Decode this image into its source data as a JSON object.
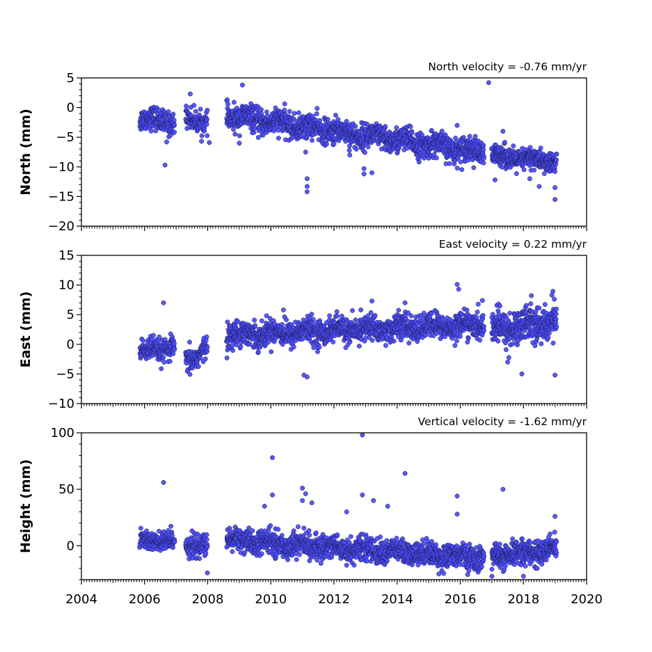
{
  "colors": {
    "marker_fill": "#4a4aff",
    "marker_edge": "#1a1a3a",
    "axes": "#000000",
    "background": "#ffffff"
  },
  "chart_data": [
    {
      "type": "scatter",
      "title": "North velocity = -0.76 mm/yr",
      "ylabel": "North (mm)",
      "xlabel": "",
      "xlim": [
        2004,
        2020
      ],
      "ylim": [
        -20,
        5
      ],
      "yticks": [
        5,
        0,
        -5,
        -10,
        -15,
        -20
      ],
      "ytick_labels": [
        "5",
        "0",
        "−5",
        "−10",
        "−15",
        "−20"
      ],
      "show_xtick_labels": false,
      "segments": [
        {
          "x": [
            2005.85,
            2006.95
          ],
          "mean": [
            -1.8,
            -2.5
          ],
          "noise": 1.2,
          "n": 160
        },
        {
          "x": [
            2007.3,
            2007.99
          ],
          "mean": [
            -1.8,
            -2.4
          ],
          "noise": 1.1,
          "n": 100
        },
        {
          "x": [
            2008.6,
            2016.75
          ],
          "mean": [
            -1.4,
            -7.6
          ],
          "noise": 1.3,
          "n": 1300
        },
        {
          "x": [
            2017.0,
            2019.05
          ],
          "mean": [
            -8.2,
            -9.2
          ],
          "noise": 1.1,
          "n": 360
        }
      ],
      "outliers": [
        {
          "x": 2006.65,
          "y": -9.7
        },
        {
          "x": 2006.7,
          "y": -5.8
        },
        {
          "x": 2007.45,
          "y": 2.3
        },
        {
          "x": 2008.05,
          "y": -5.9
        },
        {
          "x": 2008.62,
          "y": 1.3
        },
        {
          "x": 2009.1,
          "y": 3.8
        },
        {
          "x": 2009.0,
          "y": -6.0
        },
        {
          "x": 2011.15,
          "y": -12.0
        },
        {
          "x": 2011.15,
          "y": -13.3
        },
        {
          "x": 2011.15,
          "y": -14.2
        },
        {
          "x": 2011.1,
          "y": -7.5
        },
        {
          "x": 2012.5,
          "y": -8.0
        },
        {
          "x": 2012.95,
          "y": -10.3
        },
        {
          "x": 2012.95,
          "y": -11.2
        },
        {
          "x": 2013.2,
          "y": -11.0
        },
        {
          "x": 2016.9,
          "y": 4.2
        },
        {
          "x": 2015.9,
          "y": -3.0
        },
        {
          "x": 2017.35,
          "y": -4.0
        },
        {
          "x": 2017.1,
          "y": -12.2
        },
        {
          "x": 2018.5,
          "y": -13.3
        },
        {
          "x": 2019.0,
          "y": -15.5
        },
        {
          "x": 2019.0,
          "y": -13.5
        },
        {
          "x": 2018.2,
          "y": -12.0
        }
      ]
    },
    {
      "type": "scatter",
      "title": "East velocity = 0.22 mm/yr",
      "ylabel": "East (mm)",
      "xlabel": "",
      "xlim": [
        2004,
        2020
      ],
      "ylim": [
        -10,
        15
      ],
      "yticks": [
        15,
        10,
        5,
        0,
        -5,
        -10
      ],
      "ytick_labels": [
        "15",
        "10",
        "5",
        "0",
        "−5",
        "−10"
      ],
      "show_xtick_labels": false,
      "segments": [
        {
          "x": [
            2005.85,
            2006.95
          ],
          "mean": [
            -1.3,
            -0.6
          ],
          "noise": 1.2,
          "n": 160
        },
        {
          "x": [
            2007.3,
            2007.99
          ],
          "mean": [
            -3.2,
            -0.5
          ],
          "noise": 1.3,
          "n": 100
        },
        {
          "x": [
            2008.6,
            2016.75
          ],
          "mean": [
            1.6,
            3.3
          ],
          "noise": 1.3,
          "n": 1300
        },
        {
          "x": [
            2017.0,
            2019.05
          ],
          "mean": [
            2.4,
            4.0
          ],
          "noise": 1.8,
          "n": 360
        }
      ],
      "outliers": [
        {
          "x": 2006.6,
          "y": 7.0
        },
        {
          "x": 2010.4,
          "y": 5.8
        },
        {
          "x": 2011.05,
          "y": -5.2
        },
        {
          "x": 2011.15,
          "y": -5.5
        },
        {
          "x": 2012.85,
          "y": 5.8
        },
        {
          "x": 2013.2,
          "y": 7.3
        },
        {
          "x": 2014.25,
          "y": 7.0
        },
        {
          "x": 2015.9,
          "y": 10.1
        },
        {
          "x": 2015.95,
          "y": 9.3
        },
        {
          "x": 2016.7,
          "y": 7.4
        },
        {
          "x": 2017.5,
          "y": -3.0
        },
        {
          "x": 2017.95,
          "y": -5.0
        },
        {
          "x": 2018.25,
          "y": 8.2
        },
        {
          "x": 2019.0,
          "y": -5.2
        },
        {
          "x": 2018.9,
          "y": 8.3
        }
      ]
    },
    {
      "type": "scatter",
      "title": "Vertical velocity = -1.62 mm/yr",
      "ylabel": "Height (mm)",
      "xlabel": "",
      "xlim": [
        2004,
        2020
      ],
      "ylim": [
        -30,
        100
      ],
      "yticks": [
        100,
        50,
        0
      ],
      "ytick_labels": [
        "100",
        "50",
        "0"
      ],
      "show_xtick_labels": true,
      "xticks": [
        2004,
        2006,
        2008,
        2010,
        2012,
        2014,
        2016,
        2018,
        2020
      ],
      "xtick_labels": [
        "2004",
        "2006",
        "2008",
        "2010",
        "2012",
        "2014",
        "2016",
        "2018",
        "2020"
      ],
      "segments": [
        {
          "x": [
            2005.85,
            2006.95
          ],
          "mean": [
            4,
            4
          ],
          "noise": 6,
          "n": 160
        },
        {
          "x": [
            2007.3,
            2007.99
          ],
          "mean": [
            2,
            -2
          ],
          "noise": 6,
          "n": 100
        },
        {
          "x": [
            2008.6,
            2016.75
          ],
          "mean": [
            5,
            -11
          ],
          "noise": 6.5,
          "n": 1300
        },
        {
          "x": [
            2017.0,
            2019.05
          ],
          "mean": [
            -10,
            -3
          ],
          "noise": 6.5,
          "n": 360
        }
      ],
      "outliers": [
        {
          "x": 2006.6,
          "y": 56
        },
        {
          "x": 2010.05,
          "y": 78
        },
        {
          "x": 2010.05,
          "y": 45
        },
        {
          "x": 2009.8,
          "y": 35
        },
        {
          "x": 2011.0,
          "y": 51
        },
        {
          "x": 2011.1,
          "y": 46
        },
        {
          "x": 2011.0,
          "y": 40
        },
        {
          "x": 2011.3,
          "y": 38
        },
        {
          "x": 2012.9,
          "y": 98
        },
        {
          "x": 2012.9,
          "y": 45
        },
        {
          "x": 2013.25,
          "y": 40
        },
        {
          "x": 2014.25,
          "y": 64
        },
        {
          "x": 2013.7,
          "y": 35
        },
        {
          "x": 2015.9,
          "y": 44
        },
        {
          "x": 2015.9,
          "y": 28
        },
        {
          "x": 2017.35,
          "y": 50
        },
        {
          "x": 2019.0,
          "y": 26
        },
        {
          "x": 2007.99,
          "y": -24
        },
        {
          "x": 2017.0,
          "y": -27
        },
        {
          "x": 2018.0,
          "y": -27
        },
        {
          "x": 2012.4,
          "y": 30
        }
      ]
    }
  ]
}
